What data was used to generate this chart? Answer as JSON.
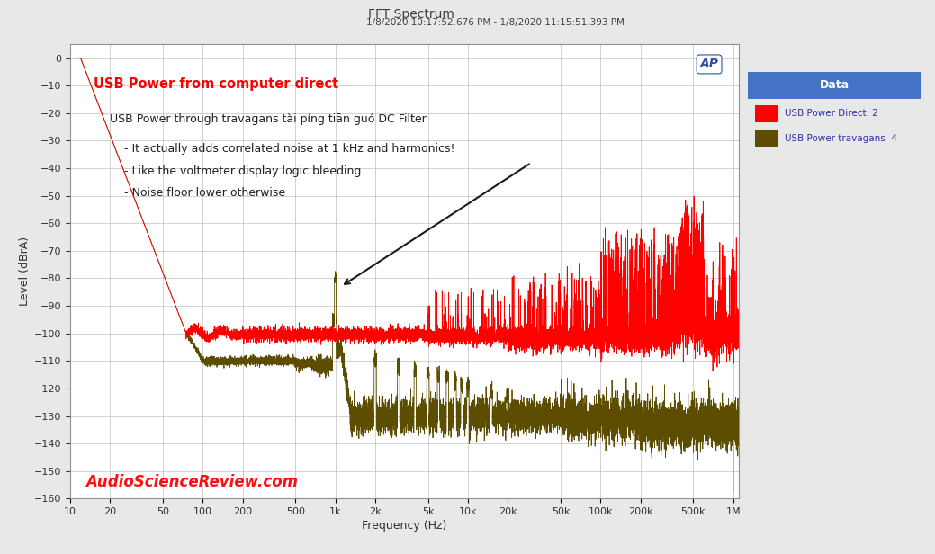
{
  "title": "FFT Spectrum",
  "subtitle": "1/8/2020 10:17:52.676 PM - 1/8/2020 11:15:51.393 PM",
  "xlabel": "Frequency (Hz)",
  "ylabel": "Level (dBrA)",
  "xlim": [
    10,
    1100000
  ],
  "ylim": [
    -160,
    5
  ],
  "yticks": [
    0,
    -10,
    -20,
    -30,
    -40,
    -50,
    -60,
    -70,
    -80,
    -90,
    -100,
    -110,
    -120,
    -130,
    -140,
    -150,
    -160
  ],
  "xtick_labels": [
    "10",
    "20",
    "50",
    "100",
    "200",
    "500",
    "1k",
    "2k",
    "5k",
    "10k",
    "20k",
    "50k",
    "100k",
    "200k",
    "500k",
    "1M"
  ],
  "xtick_values": [
    10,
    20,
    50,
    100,
    200,
    500,
    1000,
    2000,
    5000,
    10000,
    20000,
    50000,
    100000,
    200000,
    500000,
    1000000
  ],
  "fig_bg_color": "#e8e8e8",
  "plot_bg_color": "#ffffff",
  "grid_color": "#c0c0c0",
  "red_color": "#ff0000",
  "olive_color": "#5c4d00",
  "title_color": "#404040",
  "legend_header_bg": "#4472c4",
  "legend_text_color": "#3030a0",
  "annotation_text_red": "#ff0000",
  "annotation_text_dark": "#202020",
  "watermark_color": "#ff1010",
  "ap_logo_color": "#3050a0",
  "label1": "USB Power Direct  2",
  "label2": "USB Power travagans  4",
  "annotation1": "USB Power from computer direct",
  "annotation2": "USB Power through travagans tài píng tiān guó DC Filter",
  "annotation3": "    - It actually adds correlated noise at 1 kHz and harmonics!",
  "annotation4": "    - Like the voltmeter display logic bleeding",
  "annotation5": "    - Noise floor lower otherwise",
  "watermark": "AudioScienceReview.com"
}
